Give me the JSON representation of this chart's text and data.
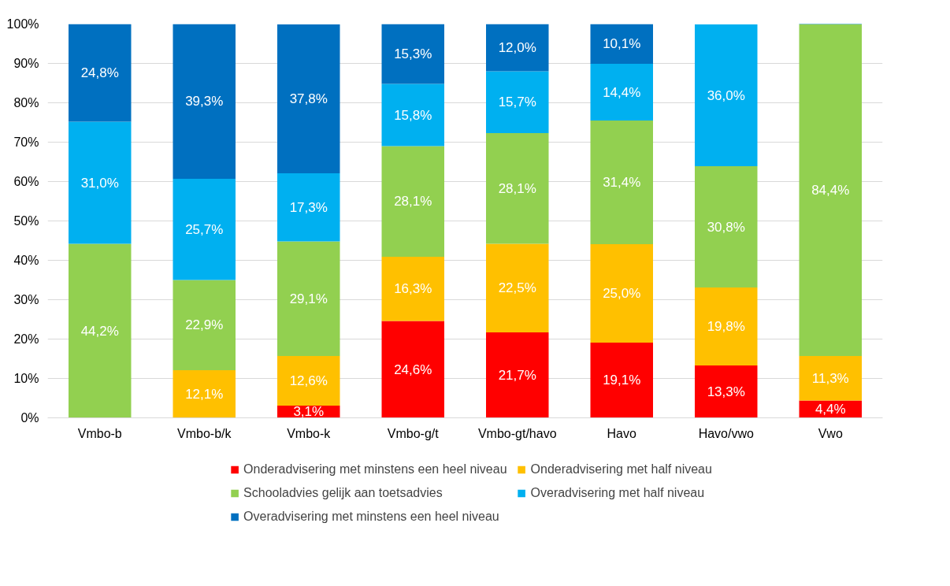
{
  "chart_data": {
    "type": "bar",
    "stacked": true,
    "categories": [
      "Vmbo-b",
      "Vmbo-b/k",
      "Vmbo-k",
      "Vmbo-g/t",
      "Vmbo-gt/havo",
      "Havo",
      "Havo/vwo",
      "Vwo"
    ],
    "series": [
      {
        "name": "Onderadvisering met minstens een heel niveau",
        "color": "#ff0000",
        "values": [
          null,
          null,
          3.1,
          24.6,
          21.7,
          19.1,
          13.3,
          4.4
        ],
        "value_labels": [
          null,
          null,
          "3,1%",
          "24,6%",
          "21,7%",
          "19,1%",
          "13,3%",
          "4,4%"
        ]
      },
      {
        "name": "Onderadvisering met half niveau",
        "color": "#ffc000",
        "values": [
          null,
          12.1,
          12.6,
          16.3,
          22.5,
          25.0,
          19.8,
          11.3
        ],
        "value_labels": [
          null,
          "12,1%",
          "12,6%",
          "16,3%",
          "22,5%",
          "25,0%",
          "19,8%",
          "11,3%"
        ]
      },
      {
        "name": "Schooladvies gelijk aan toetsadvies",
        "color": "#92d050",
        "values": [
          44.2,
          22.9,
          29.1,
          28.1,
          28.1,
          31.4,
          30.8,
          84.4
        ],
        "value_labels": [
          "44,2%",
          "22,9%",
          "29,1%",
          "28,1%",
          "28,1%",
          "31,4%",
          "30,8%",
          "84,4%"
        ]
      },
      {
        "name": "Overadvisering met half niveau",
        "color": "#00b0f0",
        "values": [
          31.0,
          25.7,
          17.3,
          15.8,
          15.7,
          14.4,
          36.0,
          null
        ],
        "value_labels": [
          "31,0%",
          "25,7%",
          "17,3%",
          "15,8%",
          "15,7%",
          "14,4%",
          "36,0%",
          null
        ]
      },
      {
        "name": "Overadvisering met minstens een heel niveau",
        "color": "#0070c0",
        "values": [
          24.8,
          39.3,
          37.8,
          15.3,
          12.0,
          10.1,
          null,
          null
        ],
        "value_labels": [
          "24,8%",
          "39,3%",
          "37,8%",
          "15,3%",
          "12,0%",
          "10,1%",
          null,
          null
        ]
      }
    ],
    "ylim": [
      0,
      100
    ],
    "yticks": [
      {
        "value": 0,
        "label": "0%"
      },
      {
        "value": 10,
        "label": "10%"
      },
      {
        "value": 20,
        "label": "20%"
      },
      {
        "value": 30,
        "label": "30%"
      },
      {
        "value": 40,
        "label": "40%"
      },
      {
        "value": 50,
        "label": "50%"
      },
      {
        "value": 60,
        "label": "60%"
      },
      {
        "value": 70,
        "label": "70%"
      },
      {
        "value": 80,
        "label": "80%"
      },
      {
        "value": 90,
        "label": "90%"
      },
      {
        "value": 100,
        "label": "100%"
      }
    ],
    "grid": "y",
    "legend": "bottom"
  }
}
